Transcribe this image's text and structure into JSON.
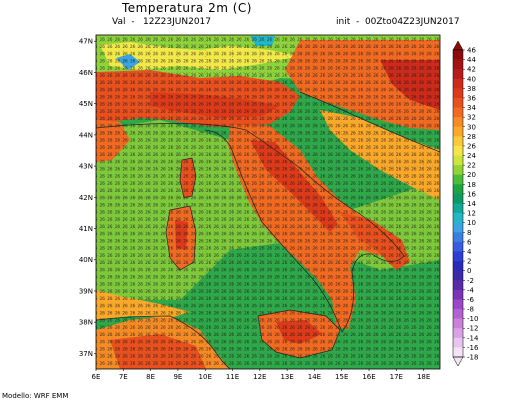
{
  "header": {
    "title": "Temperatura 2m (C)",
    "valid_label": "Val",
    "valid_time": "12Z23JUN2017",
    "init_label": "init",
    "init_time": "00Zto04Z23JUN2017"
  },
  "footer": {
    "model": "Modello: WRF EMM"
  },
  "map": {
    "lat_labels": [
      "47N",
      "46N",
      "45N",
      "44N",
      "43N",
      "42N",
      "41N",
      "40N",
      "39N",
      "38N",
      "37N"
    ],
    "lon_labels": [
      "6E",
      "7E",
      "8E",
      "9E",
      "10E",
      "11E",
      "12E",
      "13E",
      "14E",
      "15E",
      "16E",
      "17E",
      "18E"
    ],
    "lat_range": [
      36.5,
      47.2
    ],
    "lon_range": [
      6,
      18.6
    ]
  },
  "colorbar": {
    "ticks": [
      "46",
      "44",
      "42",
      "40",
      "38",
      "36",
      "34",
      "32",
      "30",
      "28",
      "26",
      "24",
      "22",
      "20",
      "18",
      "16",
      "14",
      "12",
      "10",
      "8",
      "6",
      "4",
      "2",
      "0",
      "-2",
      "-4",
      "-6",
      "-8",
      "-10",
      "-12",
      "-14",
      "-16",
      "-18"
    ],
    "colors": [
      "#8b0a0a",
      "#a31212",
      "#b71c1c",
      "#cc2a1a",
      "#dd3a1a",
      "#e8501e",
      "#f06a22",
      "#f58b25",
      "#f9a82a",
      "#fbc93a",
      "#f7e44a",
      "#cbe63c",
      "#92d434",
      "#4cbc3c",
      "#1fa445",
      "#0e9a62",
      "#12a89a",
      "#23b8c8",
      "#3aa3e0",
      "#3c7fe0",
      "#3a5ce0",
      "#2c3ed4",
      "#2a2ab8",
      "#3a2aa8",
      "#5a2ca8",
      "#7b35b8",
      "#9a48c8",
      "#b462d2",
      "#c982dc",
      "#d9a2e6",
      "#e8c4ef",
      "#f4e2f7"
    ]
  }
}
